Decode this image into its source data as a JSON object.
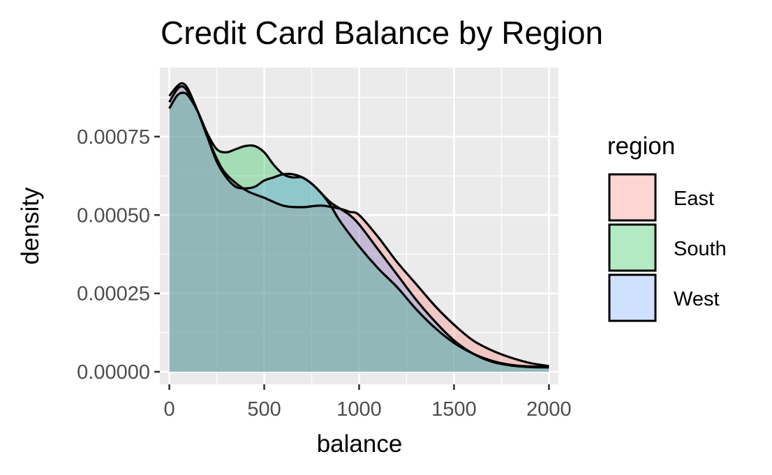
{
  "chart_data": {
    "type": "area",
    "title": "Credit Card Balance by Region",
    "xlabel": "balance",
    "ylabel": "density",
    "xlim": [
      -50,
      2050
    ],
    "ylim": [
      -4e-05,
      0.00097
    ],
    "x_ticks": [
      0,
      500,
      1000,
      1500,
      2000
    ],
    "x_tick_labels": [
      "0",
      "500",
      "1000",
      "1500",
      "2000"
    ],
    "y_ticks": [
      0,
      0.00025,
      0.0005,
      0.00075
    ],
    "y_tick_labels": [
      "0.00000",
      "0.00025",
      "0.00050",
      "0.00075"
    ],
    "grid": true,
    "legend": {
      "title": "region",
      "position": "right",
      "items": [
        {
          "label": "East",
          "color": "#F8766D"
        },
        {
          "label": "South",
          "color": "#00BA38"
        },
        {
          "label": "West",
          "color": "#619CFF"
        }
      ]
    },
    "fill_alpha": 0.3,
    "series": [
      {
        "name": "East",
        "color": "#F8766D",
        "x": [
          0,
          40,
          70,
          100,
          150,
          200,
          250,
          300,
          400,
          500,
          600,
          700,
          800,
          900,
          950,
          1000,
          1100,
          1200,
          1300,
          1400,
          1500,
          1600,
          1700,
          1800,
          1900,
          2000
        ],
        "y": [
          0.00088,
          0.00091,
          0.00092,
          0.0009,
          0.00083,
          0.00075,
          0.00068,
          0.00063,
          0.00058,
          0.000555,
          0.00053,
          0.000525,
          0.00053,
          0.00052,
          0.00051,
          0.0005,
          0.00043,
          0.00035,
          0.00028,
          0.00021,
          0.00015,
          0.0001,
          6.8e-05,
          4.5e-05,
          2.8e-05,
          1.8e-05
        ]
      },
      {
        "name": "South",
        "color": "#00BA38",
        "x": [
          0,
          40,
          70,
          100,
          150,
          200,
          250,
          300,
          350,
          400,
          450,
          500,
          550,
          600,
          650,
          700,
          750,
          800,
          850,
          900,
          1000,
          1100,
          1200,
          1300,
          1400,
          1500,
          1600,
          1700,
          1800,
          1900,
          2000
        ],
        "y": [
          0.00084,
          0.00088,
          0.00089,
          0.00088,
          0.00083,
          0.00076,
          0.00071,
          0.0007,
          0.00071,
          0.00072,
          0.00072,
          0.0007,
          0.00066,
          0.00063,
          0.00062,
          0.00062,
          0.0006,
          0.00057,
          0.00053,
          0.00048,
          0.0004,
          0.00033,
          0.00027,
          0.0002,
          0.00014,
          9.2e-05,
          5.8e-05,
          3.5e-05,
          2.2e-05,
          1.7e-05,
          1.5e-05
        ]
      },
      {
        "name": "West",
        "color": "#619CFF",
        "x": [
          0,
          40,
          70,
          100,
          150,
          200,
          250,
          300,
          350,
          400,
          450,
          500,
          550,
          600,
          650,
          700,
          750,
          800,
          850,
          900,
          950,
          1000,
          1100,
          1200,
          1300,
          1400,
          1500,
          1600,
          1700,
          1800,
          1900,
          2000
        ],
        "y": [
          0.00086,
          0.0009,
          0.00091,
          0.00089,
          0.00083,
          0.00075,
          0.00067,
          0.00062,
          0.00059,
          0.000585,
          0.00059,
          0.00061,
          0.00062,
          0.00063,
          0.00063,
          0.00062,
          0.0006,
          0.00057,
          0.00054,
          0.00052,
          0.0005,
          0.00047,
          0.00039,
          0.00031,
          0.00023,
          0.00016,
          0.0001,
          5.8e-05,
          3.2e-05,
          2e-05,
          1.5e-05,
          1.4e-05
        ]
      }
    ]
  }
}
